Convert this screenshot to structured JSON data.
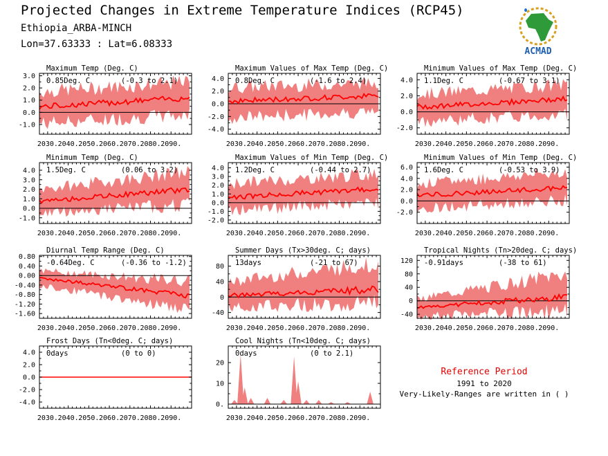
{
  "header": {
    "title": "Projected Changes in Extreme Temperature Indices (RCP45)",
    "location": "Ethiopia_ARBA-MINCH",
    "coords": "Lon=37.63333 : Lat=6.08333"
  },
  "logo": {
    "text": "ACMAD",
    "icon": "africa-map-logo"
  },
  "reference": {
    "title": "Reference Period",
    "years": "1991 to 2020",
    "note": "Very-Likely-Ranges are written in ( )"
  },
  "colors": {
    "band": "#f08080",
    "line": "#ff0000",
    "zero": "#000000",
    "ref_title": "#e00000"
  },
  "x_ticks": [
    "2030.",
    "2040.",
    "2050.",
    "2060.",
    "2070.",
    "2080.",
    "2090."
  ],
  "chart_data": [
    {
      "type": "line",
      "title": "Maximum Temp (Deg. C)",
      "summary": "0.85Deg. C",
      "range": "(-0.3 to 2.1)",
      "ylim": [
        -1.8,
        3.2
      ],
      "yticks": [
        "3.0",
        "2.0",
        "1.0",
        "0.0",
        "-1.0"
      ],
      "ytick_values": [
        3,
        2,
        1,
        0,
        -1
      ],
      "x": [
        2026,
        2100
      ],
      "mean_start": 0.45,
      "mean_end": 1.2,
      "low_start": -0.9,
      "low_end": -0.2,
      "high_start": 1.7,
      "high_end": 2.5
    },
    {
      "type": "line",
      "title": "Maximum Values of Max Temp (Deg. C)",
      "summary": "0.8Deg. C",
      "range": "(-1.6 to 2.4)",
      "ylim": [
        -4.8,
        4.8
      ],
      "yticks": [
        "4.0",
        "2.0",
        "0.0",
        "-2.0",
        "-4.0"
      ],
      "ytick_values": [
        4,
        2,
        0,
        -2,
        -4
      ],
      "x": [
        2026,
        2100
      ],
      "mean_start": 0.4,
      "mean_end": 1.3,
      "low_start": -2.2,
      "low_end": -1.2,
      "high_start": 2.6,
      "high_end": 3.3
    },
    {
      "type": "line",
      "title": "Minimum Values of Max Temp (Deg. C)",
      "summary": "1.1Deg. C",
      "range": "(-0.67 to 3.1)",
      "ylim": [
        -2.8,
        4.8
      ],
      "yticks": [
        "4.0",
        "2.0",
        "0.0",
        "-2.0"
      ],
      "ytick_values": [
        4,
        2,
        0,
        -2
      ],
      "x": [
        2026,
        2100
      ],
      "mean_start": 0.6,
      "mean_end": 1.6,
      "low_start": -1.2,
      "low_end": -0.3,
      "high_start": 2.2,
      "high_end": 3.4
    },
    {
      "type": "line",
      "title": "Minimum Temp (Deg. C)",
      "summary": "1.5Deg. C",
      "range": "(0.06 to 3.2)",
      "ylim": [
        -1.6,
        4.8
      ],
      "yticks": [
        "4.0",
        "3.0",
        "2.0",
        "1.0",
        "0.0",
        "-1.0"
      ],
      "ytick_values": [
        4,
        3,
        2,
        1,
        0,
        -1
      ],
      "x": [
        2026,
        2100
      ],
      "mean_start": 0.7,
      "mean_end": 2.0,
      "low_start": -0.5,
      "low_end": 0.4,
      "high_start": 2.0,
      "high_end": 3.8
    },
    {
      "type": "line",
      "title": "Maximum Values of Min Temp (Deg. C)",
      "summary": "1.2Deg. C",
      "range": "(-0.44 to 2.7)",
      "ylim": [
        -2.4,
        4.6
      ],
      "yticks": [
        "4.0",
        "3.0",
        "2.0",
        "1.0",
        "0.0",
        "-1.0",
        "-2.0"
      ],
      "ytick_values": [
        4,
        3,
        2,
        1,
        0,
        -1,
        -2
      ],
      "x": [
        2026,
        2100
      ],
      "mean_start": 0.6,
      "mean_end": 1.6,
      "low_start": -0.9,
      "low_end": 0.0,
      "high_start": 2.2,
      "high_end": 3.3
    },
    {
      "type": "line",
      "title": "Minimum Values of Min Temp (Deg. C)",
      "summary": "1.6Deg. C",
      "range": "(-0.53 to 3.9)",
      "ylim": [
        -4.0,
        6.8
      ],
      "yticks": [
        "6.0",
        "4.0",
        "2.0",
        "0.0",
        "-2.0"
      ],
      "ytick_values": [
        6,
        4,
        2,
        0,
        -2
      ],
      "x": [
        2026,
        2100
      ],
      "mean_start": 1.0,
      "mean_end": 2.3,
      "low_start": -1.3,
      "low_end": 0.0,
      "high_start": 3.0,
      "high_end": 5.2
    },
    {
      "type": "line",
      "title": "Diurnal Temp Range (Deg. C)",
      "summary": "-0.64Deg. C",
      "range": "(-0.36 to -1.2)",
      "ylim": [
        -1.8,
        0.85
      ],
      "yticks": [
        "0.80",
        "0.40",
        "0.00",
        "-0.40",
        "-0.80",
        "-1.20",
        "-1.60"
      ],
      "ytick_values": [
        0.8,
        0.4,
        0,
        -0.4,
        -0.8,
        -1.2,
        -1.6
      ],
      "x": [
        2026,
        2100
      ],
      "mean_start": -0.1,
      "mean_end": -0.85,
      "low_start": -0.4,
      "low_end": -1.45,
      "high_start": 0.2,
      "high_end": -0.25
    },
    {
      "type": "line",
      "title": "Summer Days (Tx>30deg. C; days)",
      "summary": "13days",
      "range": "(-21 to 67)",
      "ylim": [
        -55,
        108
      ],
      "yticks": [
        "80",
        "40",
        "0",
        "-40"
      ],
      "ytick_values": [
        80,
        40,
        0,
        -40
      ],
      "x": [
        2026,
        2100
      ],
      "mean_start": 3,
      "mean_end": 20,
      "low_start": -25,
      "low_end": -15,
      "high_start": 40,
      "high_end": 88
    },
    {
      "type": "line",
      "title": "Tropical Nights (Tn>20deg. C; days)",
      "summary": "-0.91days",
      "range": "(-38 to 61)",
      "ylim": [
        -52,
        135
      ],
      "yticks": [
        "120",
        "80",
        "40",
        "0",
        "-40"
      ],
      "ytick_values": [
        120,
        80,
        40,
        0,
        -40
      ],
      "x": [
        2026,
        2100
      ],
      "mean_start": -20,
      "mean_end": 12,
      "low_start": -45,
      "low_end": -32,
      "high_start": 5,
      "high_end": 80
    },
    {
      "type": "line",
      "title": "Frost Days (Tn<0deg. C; days)",
      "summary": "0days",
      "range": "(0 to 0)",
      "ylim": [
        -5.0,
        5.0
      ],
      "yticks": [
        "4.0",
        "2.0",
        "0.0",
        "-2.0",
        "-4.0"
      ],
      "ytick_values": [
        4,
        2,
        0,
        -2,
        -4
      ],
      "x": [
        2026,
        2100
      ],
      "mean_start": 0,
      "mean_end": 0,
      "low_start": 0,
      "low_end": 0,
      "high_start": 0,
      "high_end": 0
    },
    {
      "type": "area",
      "title": "Cool Nights (Tn<10deg. C; days)",
      "summary": "0days",
      "range": "(0 to 2.1)",
      "ylim": [
        -2,
        28
      ],
      "yticks": [
        "20",
        "10",
        "0."
      ],
      "ytick_values": [
        20,
        10,
        0
      ],
      "x": [
        2026,
        2100
      ],
      "mean_start": 0,
      "mean_end": 0,
      "low_start": 0,
      "low_end": 0,
      "high_start": 0,
      "high_end": 0,
      "spikes": [
        [
          2029,
          2
        ],
        [
          2032,
          24
        ],
        [
          2034,
          8
        ],
        [
          2037,
          3
        ],
        [
          2045,
          3
        ],
        [
          2053,
          2
        ],
        [
          2058,
          23
        ],
        [
          2060,
          11
        ],
        [
          2064,
          2
        ],
        [
          2070,
          2
        ],
        [
          2076,
          1
        ],
        [
          2084,
          1
        ],
        [
          2095,
          6
        ]
      ]
    }
  ]
}
